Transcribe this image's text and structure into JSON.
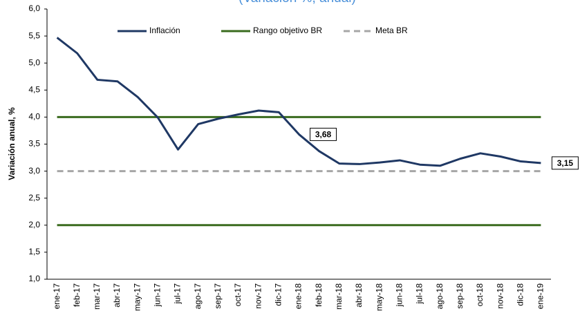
{
  "chart_data": {
    "type": "line",
    "subtitle": "(Variación %, anual)",
    "ylabel": "Variación anual, %",
    "categories": [
      "ene-17",
      "feb-17",
      "mar-17",
      "abr-17",
      "may-17",
      "jun-17",
      "jul-17",
      "ago-17",
      "sep-17",
      "oct-17",
      "nov-17",
      "dic-17",
      "ene-18",
      "feb-18",
      "mar-18",
      "abr-18",
      "may-18",
      "jun-18",
      "jul-18",
      "ago-18",
      "sep-18",
      "oct-18",
      "nov-18",
      "dic-18",
      "ene-19"
    ],
    "series": [
      {
        "name": "Inflación",
        "color": "#1f3864",
        "values": [
          5.47,
          5.18,
          4.69,
          4.66,
          4.37,
          3.99,
          3.4,
          3.87,
          3.97,
          4.05,
          4.12,
          4.09,
          3.68,
          3.37,
          3.14,
          3.13,
          3.16,
          3.2,
          3.12,
          3.1,
          3.23,
          3.33,
          3.27,
          3.18,
          3.15
        ],
        "value_labels": [
          null,
          null,
          null,
          null,
          null,
          null,
          null,
          null,
          null,
          null,
          null,
          null,
          "3,68",
          null,
          null,
          null,
          null,
          null,
          null,
          null,
          null,
          null,
          null,
          null,
          "3,15"
        ]
      }
    ],
    "reference_lines": [
      {
        "name": "Rango objetivo BR",
        "color": "#3a6b1e",
        "dashed": false,
        "values": [
          2,
          4
        ]
      },
      {
        "name": "Meta BR",
        "color": "#a6a6a6",
        "dashed": true,
        "values": [
          3
        ]
      }
    ],
    "ylim": [
      1,
      6
    ],
    "yticks": [
      {
        "value": 1,
        "label": "1,0"
      },
      {
        "value": 1.5,
        "label": "1,5"
      },
      {
        "value": 2,
        "label": "2,0"
      },
      {
        "value": 2.5,
        "label": "2,5"
      },
      {
        "value": 3,
        "label": "3,0"
      },
      {
        "value": 3.5,
        "label": "3,5"
      },
      {
        "value": 4,
        "label": "4,0"
      },
      {
        "value": 4.5,
        "label": "4,5"
      },
      {
        "value": 5,
        "label": "5,0"
      },
      {
        "value": 5.5,
        "label": "5,5"
      },
      {
        "value": 6,
        "label": "6,0"
      }
    ],
    "grid": false
  }
}
